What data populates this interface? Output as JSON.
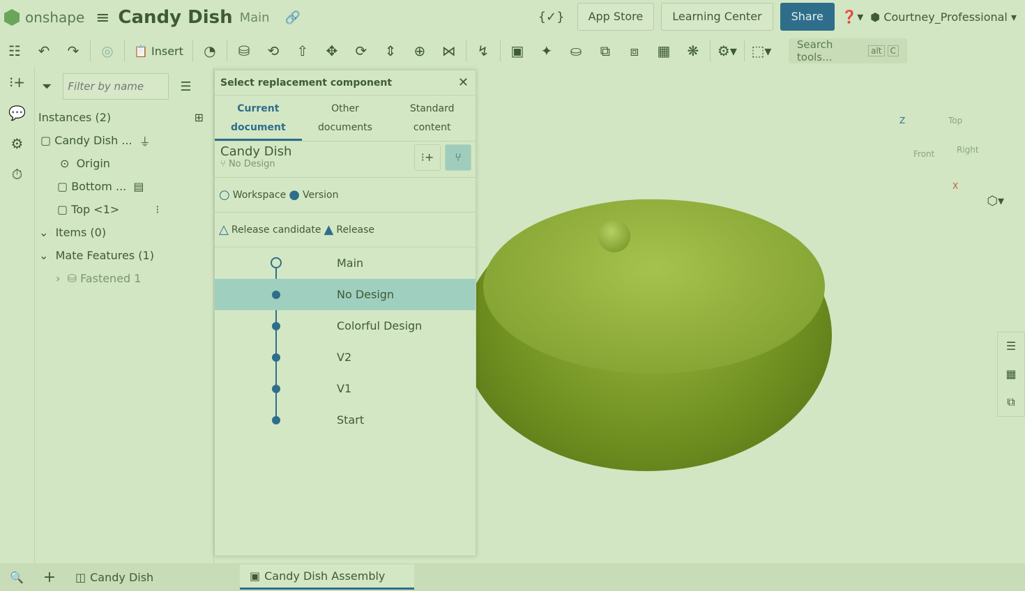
{
  "header": {
    "brand": "onshape",
    "doc_title": "Candy Dish",
    "branch": "Main",
    "app_store": "App Store",
    "learning_center": "Learning Center",
    "share": "Share",
    "help": "?",
    "user": "Courtney_Professional"
  },
  "toolbar": {
    "insert": "Insert",
    "search_placeholder": "Search tools...",
    "kbd_alt": "alt",
    "kbd_c": "C"
  },
  "instances": {
    "filter_placeholder": "Filter by name",
    "header": "Instances (2)",
    "items": [
      "Candy Dish ...",
      "Origin",
      "Bottom ...",
      "Top <1>"
    ],
    "items_group": "Items (0)",
    "mate_features": "Mate Features (1)",
    "fastened": "Fastened 1"
  },
  "dialog": {
    "title": "Select replacement component",
    "tabs": [
      {
        "l1": "Current",
        "l2": "document"
      },
      {
        "l1": "Other",
        "l2": "documents"
      },
      {
        "l1": "Standard",
        "l2": "content"
      }
    ],
    "doc_name": "Candy Dish",
    "doc_branch": "No Design",
    "legend": {
      "workspace": "Workspace",
      "version": "Version",
      "release_candidate": "Release candidate",
      "release": "Release"
    },
    "tree": [
      "Main",
      "No Design",
      "Colorful Design",
      "V2",
      "V1",
      "Start"
    ],
    "selected": "No Design"
  },
  "viewcube": {
    "top": "Top",
    "front": "Front",
    "right": "Right",
    "z": "Z",
    "x": "X"
  },
  "bottom_tabs": [
    "Candy Dish",
    "Candy Dish Assembly"
  ],
  "colors": {
    "accent": "#2f6e8b",
    "background": "#d2e6c3",
    "selected": "#9fcfbf"
  }
}
